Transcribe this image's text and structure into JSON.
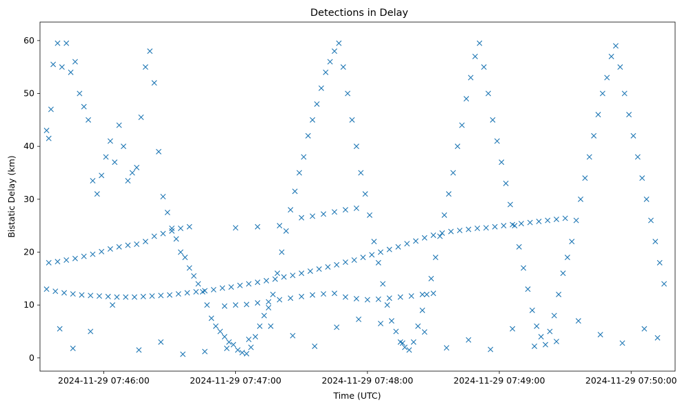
{
  "chart_data": {
    "type": "scatter",
    "title": "Detections in Delay",
    "xlabel": "Time (UTC)",
    "ylabel": "Bistatic Delay (km)",
    "x_tick_labels": [
      "2024-11-29 07:46:00",
      "2024-11-29 07:47:00",
      "2024-11-29 07:48:00",
      "2024-11-29 07:49:00",
      "2024-11-29 07:50:00"
    ],
    "x_ticks_seconds": [
      0,
      60,
      120,
      180,
      240
    ],
    "y_ticks": [
      0,
      10,
      20,
      30,
      40,
      50,
      60
    ],
    "xlim_seconds": [
      -29,
      260
    ],
    "ylim": [
      -2.5,
      63.5
    ],
    "marker": "x",
    "color": "#1f77b4",
    "grid": false,
    "legend": "none",
    "series": [
      {
        "curve": "track-a",
        "points": [
          [
            -26,
            13.0
          ],
          [
            -22,
            12.6
          ],
          [
            -18,
            12.3
          ],
          [
            -14,
            12.1
          ],
          [
            -10,
            11.9
          ],
          [
            -6,
            11.8
          ],
          [
            -2,
            11.7
          ],
          [
            2,
            11.6
          ],
          [
            6,
            11.5
          ],
          [
            10,
            11.5
          ],
          [
            14,
            11.5
          ],
          [
            18,
            11.6
          ],
          [
            22,
            11.7
          ],
          [
            26,
            11.8
          ],
          [
            30,
            11.9
          ],
          [
            34,
            12.1
          ],
          [
            38,
            12.3
          ],
          [
            42,
            12.5
          ],
          [
            46,
            12.7
          ],
          [
            50,
            12.9
          ],
          [
            54,
            13.2
          ],
          [
            58,
            13.4
          ],
          [
            62,
            13.7
          ],
          [
            66,
            14.0
          ],
          [
            70,
            14.3
          ],
          [
            74,
            14.6
          ],
          [
            78,
            14.9
          ],
          [
            82,
            15.3
          ],
          [
            86,
            15.6
          ],
          [
            90,
            16.0
          ],
          [
            94,
            16.4
          ],
          [
            98,
            16.8
          ],
          [
            102,
            17.2
          ],
          [
            106,
            17.6
          ],
          [
            110,
            18.1
          ],
          [
            114,
            18.5
          ],
          [
            118,
            19.0
          ],
          [
            122,
            19.5
          ],
          [
            126,
            20.0
          ],
          [
            130,
            20.5
          ],
          [
            134,
            21.0
          ],
          [
            138,
            21.6
          ],
          [
            142,
            22.1
          ],
          [
            146,
            22.7
          ],
          [
            150,
            23.2
          ],
          [
            154,
            23.6
          ],
          [
            158,
            23.9
          ],
          [
            162,
            24.1
          ],
          [
            166,
            24.3
          ],
          [
            170,
            24.5
          ],
          [
            174,
            24.6
          ],
          [
            178,
            24.8
          ],
          [
            182,
            25.0
          ],
          [
            186,
            25.2
          ],
          [
            190,
            25.4
          ],
          [
            194,
            25.6
          ],
          [
            198,
            25.8
          ],
          [
            202,
            26.0
          ],
          [
            206,
            26.2
          ],
          [
            210,
            26.4
          ]
        ]
      },
      {
        "curve": "track-b",
        "points": [
          [
            -25,
            18.0
          ],
          [
            -21,
            18.2
          ],
          [
            -17,
            18.5
          ],
          [
            -13,
            18.8
          ],
          [
            -9,
            19.2
          ],
          [
            -5,
            19.6
          ],
          [
            -1,
            20.1
          ],
          [
            3,
            20.6
          ],
          [
            7,
            21.0
          ],
          [
            11,
            21.3
          ],
          [
            15,
            21.5
          ],
          [
            19,
            22.0
          ],
          [
            23,
            23.0
          ],
          [
            27,
            23.5
          ],
          [
            31,
            24.0
          ],
          [
            35,
            24.5
          ],
          [
            39,
            24.8
          ],
          [
            60,
            24.6
          ],
          [
            70,
            24.8
          ],
          [
            80,
            25.0
          ],
          [
            90,
            26.5
          ],
          [
            95,
            26.8
          ],
          [
            100,
            27.2
          ],
          [
            105,
            27.6
          ],
          [
            110,
            28.0
          ],
          [
            115,
            28.3
          ]
        ]
      },
      {
        "curve": "track-c",
        "points": [
          [
            55,
            9.8
          ],
          [
            60,
            10.0
          ],
          [
            65,
            10.1
          ],
          [
            70,
            10.4
          ],
          [
            75,
            10.6
          ],
          [
            80,
            11.0
          ],
          [
            85,
            11.3
          ],
          [
            90,
            11.6
          ],
          [
            95,
            11.9
          ],
          [
            100,
            12.1
          ],
          [
            105,
            12.2
          ],
          [
            110,
            11.5
          ],
          [
            115,
            11.2
          ],
          [
            120,
            11.0
          ],
          [
            125,
            11.1
          ],
          [
            130,
            11.3
          ],
          [
            135,
            11.5
          ],
          [
            140,
            11.7
          ],
          [
            145,
            12.0
          ],
          [
            150,
            12.2
          ]
        ]
      },
      {
        "curve": "scatter-noise",
        "points": [
          [
            -26,
            43
          ],
          [
            -25,
            41.5
          ],
          [
            -24,
            47
          ],
          [
            -23,
            55.5
          ],
          [
            -21,
            59.5
          ],
          [
            -19,
            55
          ],
          [
            -17,
            59.5
          ],
          [
            -15,
            54
          ],
          [
            -13,
            56
          ],
          [
            -11,
            50
          ],
          [
            -9,
            47.5
          ],
          [
            -7,
            45
          ],
          [
            -5,
            33.5
          ],
          [
            -3,
            31
          ],
          [
            -1,
            34.5
          ],
          [
            1,
            38
          ],
          [
            3,
            41
          ],
          [
            5,
            37
          ],
          [
            7,
            44
          ],
          [
            9,
            40
          ],
          [
            11,
            33.5
          ],
          [
            13,
            35
          ],
          [
            15,
            36
          ],
          [
            17,
            45.5
          ],
          [
            19,
            55
          ],
          [
            21,
            58
          ],
          [
            23,
            52
          ],
          [
            25,
            39
          ],
          [
            27,
            30.5
          ],
          [
            29,
            27.5
          ],
          [
            31,
            24.5
          ],
          [
            33,
            22.5
          ],
          [
            35,
            20
          ],
          [
            37,
            19
          ],
          [
            39,
            17
          ],
          [
            41,
            15.5
          ],
          [
            43,
            14
          ],
          [
            45,
            12.5
          ],
          [
            47,
            10
          ],
          [
            49,
            7.5
          ],
          [
            51,
            6
          ],
          [
            53,
            5
          ],
          [
            55,
            4
          ],
          [
            57,
            3
          ],
          [
            59,
            2.5
          ],
          [
            61,
            1.5
          ],
          [
            63,
            1
          ],
          [
            65,
            0.8
          ],
          [
            67,
            2
          ],
          [
            69,
            4
          ],
          [
            71,
            6
          ],
          [
            73,
            8
          ],
          [
            75,
            9.5
          ],
          [
            77,
            12
          ],
          [
            79,
            16
          ],
          [
            81,
            20
          ],
          [
            83,
            24
          ],
          [
            85,
            28
          ],
          [
            87,
            31.5
          ],
          [
            89,
            35
          ],
          [
            91,
            38
          ],
          [
            93,
            42
          ],
          [
            95,
            45
          ],
          [
            97,
            48
          ],
          [
            99,
            51
          ],
          [
            101,
            54
          ],
          [
            103,
            56
          ],
          [
            105,
            58
          ],
          [
            107,
            59.5
          ],
          [
            109,
            55
          ],
          [
            111,
            50
          ],
          [
            113,
            45
          ],
          [
            115,
            40
          ],
          [
            117,
            35
          ],
          [
            119,
            31
          ],
          [
            121,
            27
          ],
          [
            123,
            22
          ],
          [
            125,
            18
          ],
          [
            127,
            14
          ],
          [
            129,
            10
          ],
          [
            131,
            7
          ],
          [
            133,
            5
          ],
          [
            135,
            3
          ],
          [
            137,
            2
          ],
          [
            139,
            1.5
          ],
          [
            141,
            3
          ],
          [
            143,
            6
          ],
          [
            145,
            9
          ],
          [
            147,
            12
          ],
          [
            149,
            15
          ],
          [
            151,
            19
          ],
          [
            153,
            23
          ],
          [
            155,
            27
          ],
          [
            157,
            31
          ],
          [
            159,
            35
          ],
          [
            161,
            40
          ],
          [
            163,
            44
          ],
          [
            165,
            49
          ],
          [
            167,
            53
          ],
          [
            169,
            57
          ],
          [
            171,
            59.5
          ],
          [
            173,
            55
          ],
          [
            175,
            50
          ],
          [
            177,
            45
          ],
          [
            179,
            41
          ],
          [
            181,
            37
          ],
          [
            183,
            33
          ],
          [
            185,
            29
          ],
          [
            187,
            25
          ],
          [
            189,
            21
          ],
          [
            191,
            17
          ],
          [
            193,
            13
          ],
          [
            195,
            9
          ],
          [
            197,
            6
          ],
          [
            199,
            4
          ],
          [
            201,
            2.5
          ],
          [
            203,
            5
          ],
          [
            205,
            8
          ],
          [
            207,
            12
          ],
          [
            209,
            16
          ],
          [
            211,
            19
          ],
          [
            213,
            22
          ],
          [
            215,
            26
          ],
          [
            217,
            30
          ],
          [
            219,
            34
          ],
          [
            221,
            38
          ],
          [
            223,
            42
          ],
          [
            225,
            46
          ],
          [
            227,
            50
          ],
          [
            229,
            53
          ],
          [
            231,
            57
          ],
          [
            233,
            59
          ],
          [
            235,
            55
          ],
          [
            237,
            50
          ],
          [
            239,
            46
          ],
          [
            241,
            42
          ],
          [
            243,
            38
          ],
          [
            245,
            34
          ],
          [
            247,
            30
          ],
          [
            249,
            26
          ],
          [
            251,
            22
          ],
          [
            253,
            18
          ],
          [
            255,
            14
          ],
          [
            -20,
            5.5
          ],
          [
            -14,
            1.8
          ],
          [
            -6,
            5
          ],
          [
            4,
            10
          ],
          [
            16,
            1.5
          ],
          [
            26,
            3
          ],
          [
            36,
            0.7
          ],
          [
            46,
            1.2
          ],
          [
            56,
            1.8
          ],
          [
            66,
            3.5
          ],
          [
            76,
            6
          ],
          [
            86,
            4.2
          ],
          [
            96,
            2.2
          ],
          [
            106,
            5.8
          ],
          [
            116,
            7.3
          ],
          [
            126,
            6.5
          ],
          [
            136,
            2.8
          ],
          [
            146,
            4.9
          ],
          [
            156,
            1.9
          ],
          [
            166,
            3.4
          ],
          [
            176,
            1.6
          ],
          [
            186,
            5.5
          ],
          [
            196,
            2.2
          ],
          [
            206,
            3.1
          ],
          [
            216,
            7
          ],
          [
            226,
            4.4
          ],
          [
            236,
            2.8
          ],
          [
            246,
            5.5
          ],
          [
            252,
            3.8
          ]
        ]
      }
    ]
  }
}
